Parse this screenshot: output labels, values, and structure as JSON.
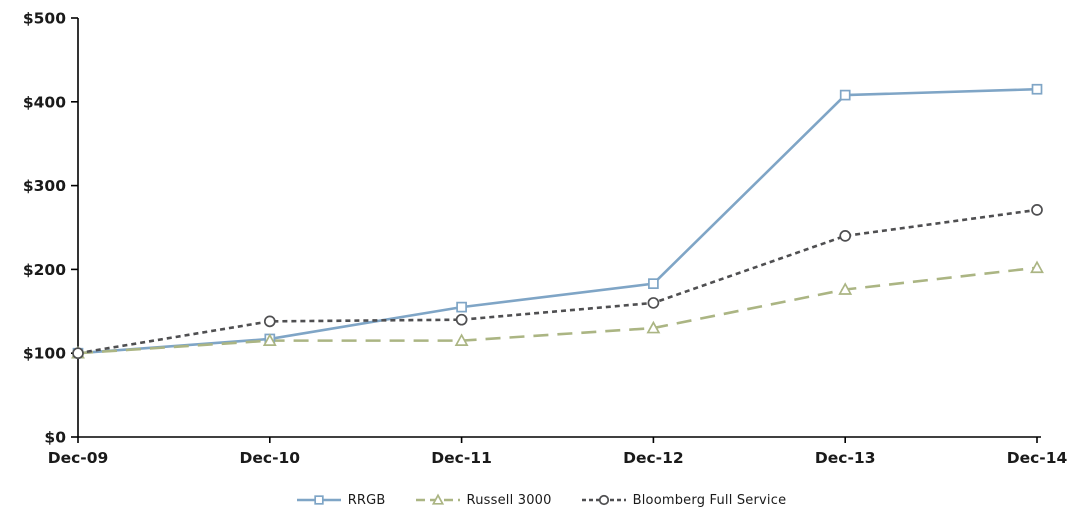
{
  "chart_data": {
    "type": "line",
    "x": [
      "Dec-09",
      "Dec-10",
      "Dec-11",
      "Dec-12",
      "Dec-13",
      "Dec-14"
    ],
    "series": [
      {
        "name": "RRGB",
        "values": [
          100,
          117,
          155,
          183,
          408,
          415
        ],
        "color": "#7fa5c6",
        "dash": "solid",
        "marker": "square"
      },
      {
        "name": "Russell 3000",
        "values": [
          100,
          115,
          115,
          130,
          176,
          202
        ],
        "color": "#abb583",
        "dash": "long-dash",
        "marker": "triangle"
      },
      {
        "name": "Bloomberg Full Service",
        "values": [
          100,
          138,
          140,
          160,
          240,
          271
        ],
        "color": "#4f4f51",
        "dash": "short-dash",
        "marker": "circle"
      }
    ],
    "title": "",
    "xlabel": "",
    "ylabel": "",
    "ylim": [
      0,
      500
    ],
    "ytick_step": 100,
    "ytick_labels": [
      "$0",
      "$100",
      "$200",
      "$300",
      "$400",
      "$500"
    ],
    "grid": false,
    "legend_position": "bottom",
    "axis_color": "#000000",
    "label_color": "#1a1a1a",
    "marker_fill": "#ffffff"
  }
}
